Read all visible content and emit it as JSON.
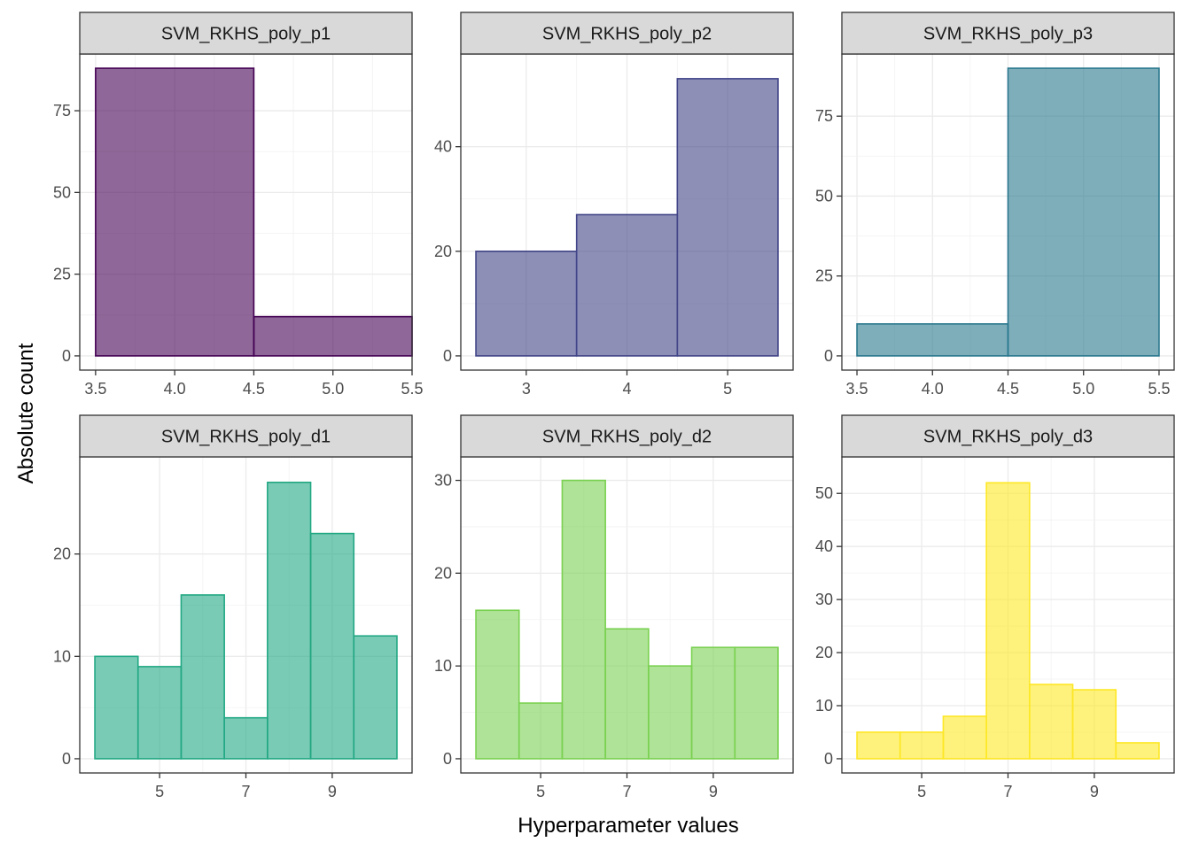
{
  "chart_data": {
    "type": "bar",
    "xlabel": "Hyperparameter values",
    "ylabel": "Absolute count",
    "panels": [
      {
        "title": "SVM_RKHS_poly_p1",
        "fill": "#440154",
        "bins": [
          {
            "from": 3.5,
            "to": 4.5,
            "count": 88
          },
          {
            "from": 4.5,
            "to": 5.5,
            "count": 12
          }
        ],
        "xlim": [
          3.4,
          5.5
        ],
        "ylim": [
          0,
          88
        ],
        "xticks": [
          3.5,
          4.0,
          4.5,
          5.0,
          5.5
        ],
        "xtick_labels": [
          "3.5",
          "4.0",
          "4.5",
          "5.0",
          "5.5"
        ],
        "yticks": [
          0,
          25,
          50,
          75
        ],
        "ytick_labels": [
          "0",
          "25",
          "50",
          "75"
        ]
      },
      {
        "title": "SVM_RKHS_poly_p2",
        "fill": "#414487",
        "bins": [
          {
            "from": 2.5,
            "to": 3.5,
            "count": 20
          },
          {
            "from": 3.5,
            "to": 4.5,
            "count": 27
          },
          {
            "from": 4.5,
            "to": 5.5,
            "count": 53
          }
        ],
        "xlim": [
          2.35,
          5.65
        ],
        "ylim": [
          0,
          55
        ],
        "xticks": [
          3,
          4,
          5
        ],
        "xtick_labels": [
          "3",
          "4",
          "5"
        ],
        "yticks": [
          0,
          20,
          40
        ],
        "ytick_labels": [
          "0",
          "20",
          "40"
        ]
      },
      {
        "title": "SVM_RKHS_poly_p3",
        "fill": "#2A788E",
        "bins": [
          {
            "from": 3.5,
            "to": 4.5,
            "count": 10
          },
          {
            "from": 4.5,
            "to": 5.5,
            "count": 90
          }
        ],
        "xlim": [
          3.4,
          5.6
        ],
        "ylim": [
          0,
          90
        ],
        "xticks": [
          3.5,
          4.0,
          4.5,
          5.0,
          5.5
        ],
        "xtick_labels": [
          "3.5",
          "4.0",
          "4.5",
          "5.0",
          "5.5"
        ],
        "yticks": [
          0,
          25,
          50,
          75
        ],
        "ytick_labels": [
          "0",
          "25",
          "50",
          "75"
        ]
      },
      {
        "title": "SVM_RKHS_poly_d1",
        "fill": "#22A884",
        "bins": [
          {
            "from": 3.5,
            "to": 4.5,
            "count": 10
          },
          {
            "from": 4.5,
            "to": 5.5,
            "count": 9
          },
          {
            "from": 5.5,
            "to": 6.5,
            "count": 16
          },
          {
            "from": 6.5,
            "to": 7.5,
            "count": 4
          },
          {
            "from": 7.5,
            "to": 8.5,
            "count": 27
          },
          {
            "from": 8.5,
            "to": 9.5,
            "count": 22
          },
          {
            "from": 9.5,
            "to": 10.5,
            "count": 12
          }
        ],
        "xlim": [
          3.15,
          10.85
        ],
        "ylim": [
          0,
          28.1
        ],
        "xticks": [
          5,
          7,
          9
        ],
        "xtick_labels": [
          "5",
          "7",
          "9"
        ],
        "yticks": [
          0,
          10,
          20
        ],
        "ytick_labels": [
          "0",
          "10",
          "20"
        ]
      },
      {
        "title": "SVM_RKHS_poly_d2",
        "fill": "#7AD151",
        "bins": [
          {
            "from": 3.5,
            "to": 4.5,
            "count": 16
          },
          {
            "from": 4.5,
            "to": 5.5,
            "count": 6
          },
          {
            "from": 5.5,
            "to": 6.5,
            "count": 30
          },
          {
            "from": 6.5,
            "to": 7.5,
            "count": 14
          },
          {
            "from": 7.5,
            "to": 8.5,
            "count": 10
          },
          {
            "from": 8.5,
            "to": 9.5,
            "count": 12
          },
          {
            "from": 9.5,
            "to": 10.5,
            "count": 12
          }
        ],
        "xlim": [
          3.15,
          10.85
        ],
        "ylim": [
          0,
          31
        ],
        "xticks": [
          5,
          7,
          9
        ],
        "xtick_labels": [
          "5",
          "7",
          "9"
        ],
        "yticks": [
          0,
          10,
          20,
          30
        ],
        "ytick_labels": [
          "0",
          "10",
          "20",
          "30"
        ]
      },
      {
        "title": "SVM_RKHS_poly_d3",
        "fill": "#FDE725",
        "bins": [
          {
            "from": 3.5,
            "to": 4.5,
            "count": 5
          },
          {
            "from": 4.5,
            "to": 5.5,
            "count": 5
          },
          {
            "from": 5.5,
            "to": 6.5,
            "count": 8
          },
          {
            "from": 6.5,
            "to": 7.5,
            "count": 52
          },
          {
            "from": 7.5,
            "to": 8.5,
            "count": 14
          },
          {
            "from": 8.5,
            "to": 9.5,
            "count": 13
          },
          {
            "from": 9.5,
            "to": 10.5,
            "count": 3
          }
        ],
        "xlim": [
          3.15,
          10.85
        ],
        "ylim": [
          0,
          54.2
        ],
        "xticks": [
          5,
          7,
          9
        ],
        "xtick_labels": [
          "5",
          "7",
          "9"
        ],
        "yticks": [
          0,
          10,
          20,
          30,
          40,
          50
        ],
        "ytick_labels": [
          "0",
          "10",
          "20",
          "30",
          "40",
          "50"
        ]
      }
    ]
  }
}
